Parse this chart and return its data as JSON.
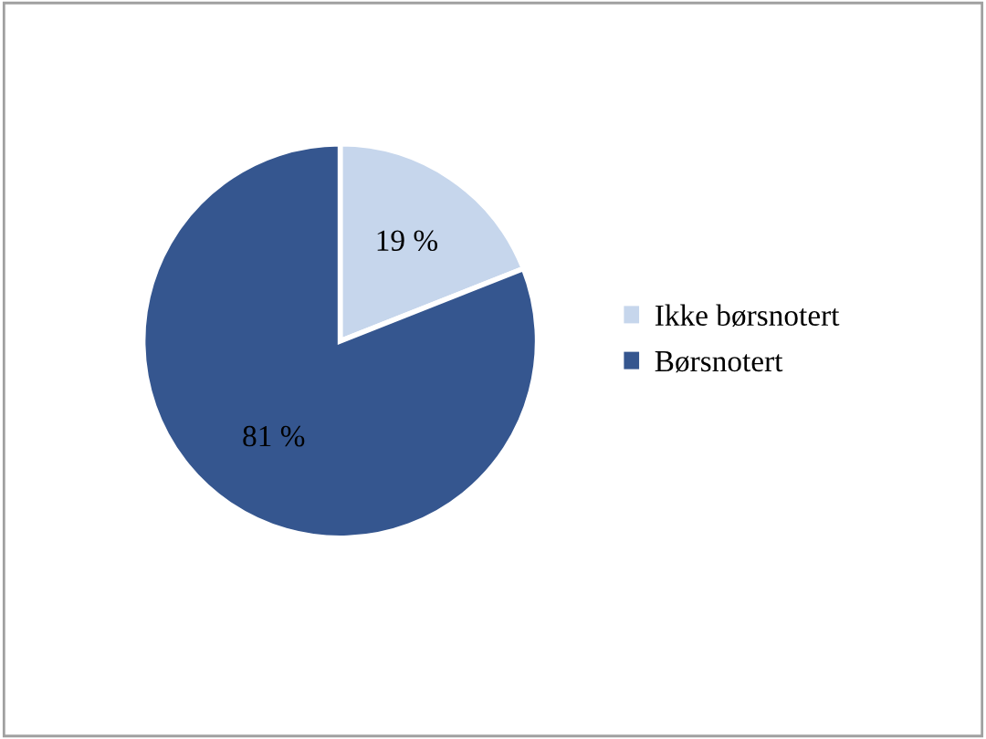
{
  "chart_data": {
    "type": "pie",
    "categories": [
      "Ikke børsnotert",
      "Børsnotert"
    ],
    "values": [
      19,
      81
    ],
    "value_labels": [
      "19 %",
      "81 %"
    ],
    "colors": [
      "#c6d6ec",
      "#35568f"
    ],
    "legend": "right"
  }
}
